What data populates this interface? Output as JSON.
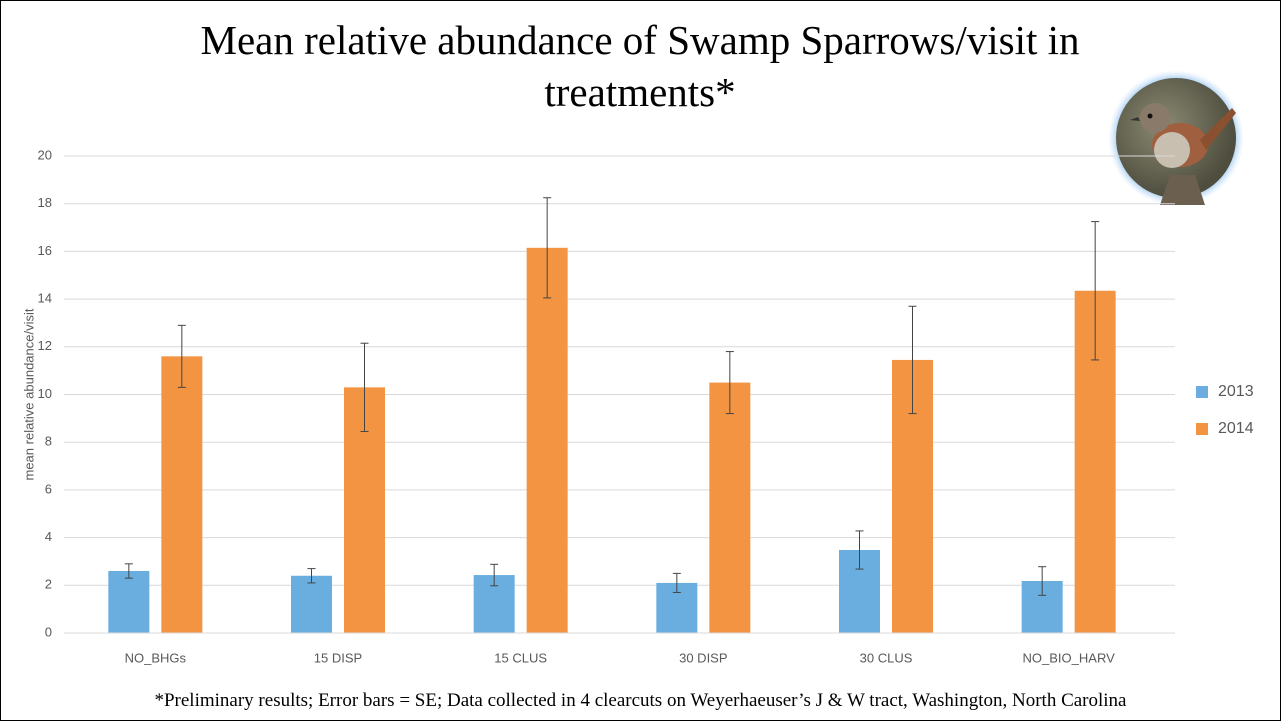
{
  "chart_data": {
    "type": "bar",
    "title": "Mean relative abundance of Swamp Sparrows/visit in treatments*",
    "y_label": "mean relative abundance/visit",
    "footnote": "*Preliminary results; Error bars = SE; Data collected in 4 clearcuts on Weyerhaeuser’s J & W tract, Washington, North Carolina",
    "categories": [
      "NO_BHGs",
      "15 DISP",
      "15 CLUS",
      "30 DISP",
      "30 CLUS",
      "NO_BIO_HARV"
    ],
    "series": [
      {
        "name": "2013",
        "color": "#6aaedf",
        "values": [
          2.6,
          2.4,
          2.43,
          2.1,
          3.48,
          2.18
        ],
        "errors": [
          0.3,
          0.3,
          0.45,
          0.4,
          0.8,
          0.6
        ]
      },
      {
        "name": "2014",
        "color": "#f39442",
        "values": [
          11.6,
          10.3,
          16.15,
          10.5,
          11.45,
          14.35
        ],
        "errors": [
          1.3,
          1.85,
          2.1,
          1.3,
          2.25,
          2.9
        ]
      }
    ],
    "ylim": [
      0,
      20
    ],
    "yticks": [
      0,
      2,
      4,
      6,
      8,
      10,
      12,
      14,
      16,
      18,
      20
    ],
    "grid": true,
    "legend": "right"
  }
}
